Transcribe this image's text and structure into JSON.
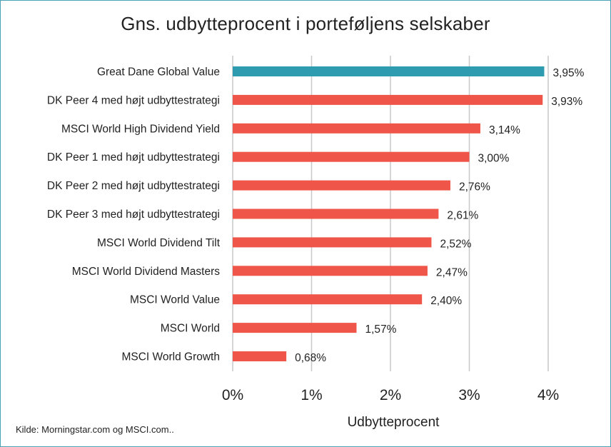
{
  "chart_data": {
    "type": "bar",
    "orientation": "horizontal",
    "title": "Gns. udbytteprocent i porteføljens selskaber",
    "xlabel": "Udbytteprocent",
    "ylabel": "",
    "xlim": [
      0,
      4
    ],
    "ticks": [
      "0%",
      "1%",
      "2%",
      "3%",
      "4%"
    ],
    "grid": true,
    "categories": [
      "Great Dane Global Value",
      "DK Peer 4 med højt udbyttestrategi",
      "MSCI World High Dividend Yield",
      "DK Peer 1 med højt udbyttestrategi",
      "DK Peer 2 med højt udbyttestrategi",
      "DK Peer 3 med højt udbyttestrategi",
      "MSCI World Dividend Tilt",
      "MSCI World Dividend Masters",
      "MSCI World Value",
      "MSCI World",
      "MSCI World Growth"
    ],
    "values": [
      3.95,
      3.93,
      3.14,
      3.0,
      2.76,
      2.61,
      2.52,
      2.47,
      2.4,
      1.57,
      0.68
    ],
    "value_labels": [
      "3,95%",
      "3,93%",
      "3,14%",
      "3,00%",
      "2,76%",
      "2,61%",
      "2,52%",
      "2,47%",
      "2,40%",
      "1,57%",
      "0,68%"
    ],
    "colors": {
      "highlight": "#2f9bb0",
      "default": "#ef5548",
      "grid": "#c8c8c8",
      "border": "#4aa3b3"
    },
    "highlight_index": 0
  },
  "source_note": "Kilde: Morningstar.com og MSCI.com.."
}
